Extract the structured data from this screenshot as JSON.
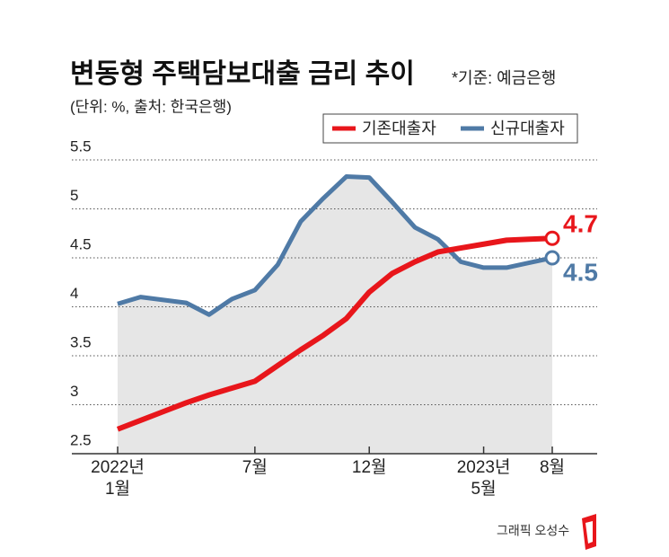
{
  "chart_data": {
    "type": "line",
    "title": "변동형 주택담보대출 금리 추이",
    "note": "*기준: 예금은행",
    "subtitle": "(단위: %, 출처: 한국은행)",
    "credit": "그래픽 오성수",
    "categories": [
      "2022년\n1월",
      null,
      null,
      null,
      null,
      null,
      "7월",
      null,
      null,
      null,
      null,
      "12월",
      null,
      null,
      null,
      null,
      "2023년\n5월",
      null,
      null,
      "8월"
    ],
    "series": [
      {
        "name": "기존대출자",
        "color": "#e8161b",
        "values": [
          2.75,
          2.84,
          2.93,
          3.02,
          3.1,
          3.17,
          3.24,
          3.4,
          3.56,
          3.71,
          3.88,
          4.15,
          4.34,
          4.46,
          4.56,
          4.6,
          4.64,
          4.68,
          4.69,
          4.7
        ]
      },
      {
        "name": "신규대출자",
        "color": "#4f7aa6",
        "values": [
          4.03,
          4.1,
          4.07,
          4.04,
          3.92,
          4.08,
          4.17,
          4.43,
          4.87,
          5.11,
          5.33,
          5.32,
          5.07,
          4.81,
          4.69,
          4.46,
          4.4,
          4.4,
          4.45,
          4.5
        ]
      }
    ],
    "area_color": "#e6e6e6",
    "ylim": [
      2.5,
      5.5
    ],
    "yticks": [
      2.5,
      3,
      3.5,
      4,
      4.5,
      5,
      5.5
    ],
    "grid": true,
    "legend": "top-right"
  }
}
